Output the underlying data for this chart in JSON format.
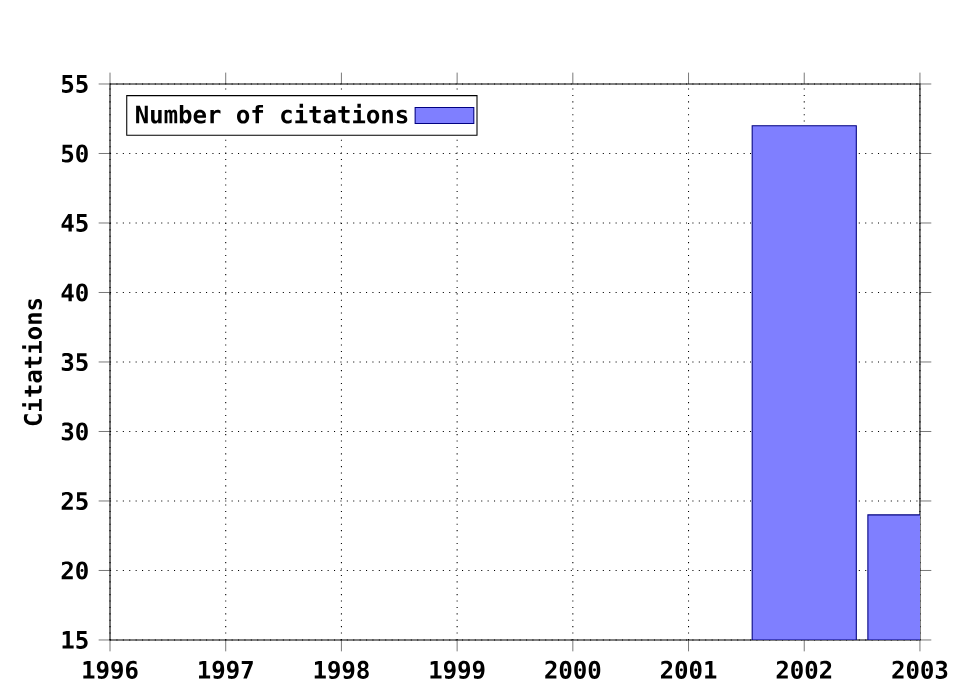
{
  "chart_data": {
    "type": "bar",
    "ylabel": "Citations",
    "x": [
      2002,
      2003
    ],
    "series": [
      {
        "name": "Number of citations",
        "color": "#7f7fff",
        "values": [
          52,
          24
        ]
      }
    ],
    "xlim": [
      1996,
      2003
    ],
    "xticks": [
      1996,
      1997,
      1998,
      1999,
      2000,
      2001,
      2002,
      2003
    ],
    "ylim": [
      15,
      55
    ],
    "yticks": [
      15,
      20,
      25,
      30,
      35,
      40,
      45,
      50,
      55
    ],
    "grid": true,
    "legend": "top left"
  }
}
